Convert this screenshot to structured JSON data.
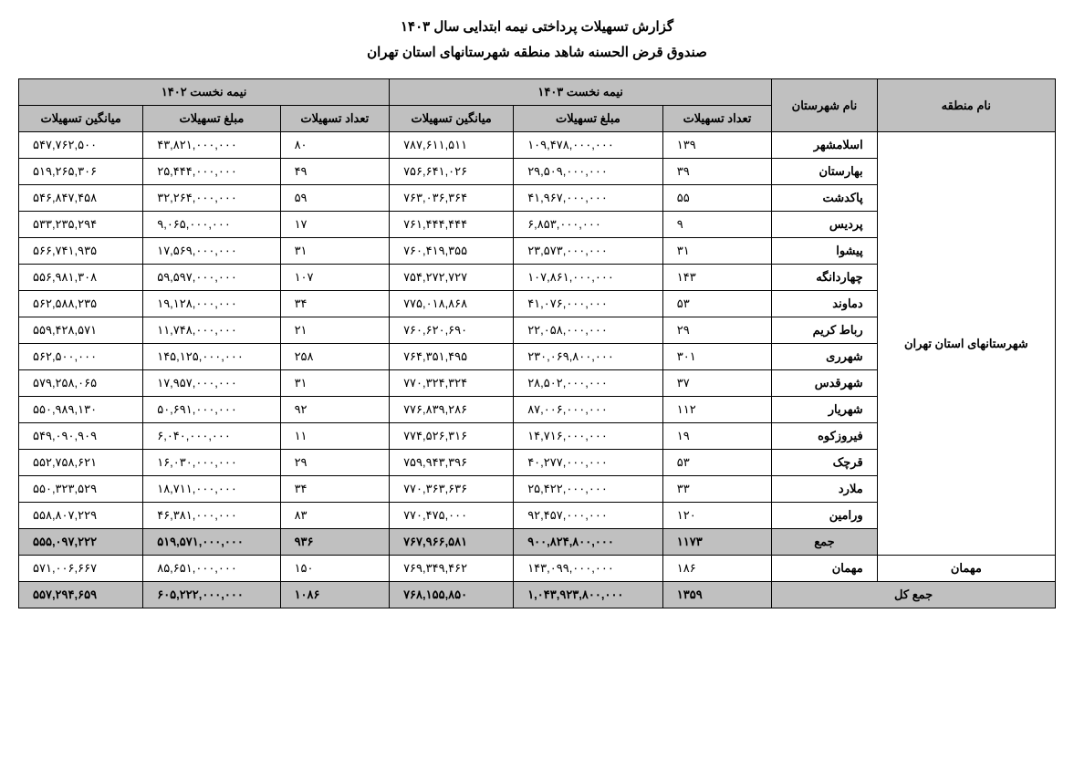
{
  "title1": "گزارش تسهیلات پرداختی نیمه ابتدایی سال ۱۴۰۳",
  "title2": "صندوق قرض الحسنه شاهد منطقه شهرستانهای استان تهران",
  "headers": {
    "region": "نام منطقه",
    "city": "نام شهرستان",
    "period1403": "نیمه نخست ۱۴۰۳",
    "period1402": "نیمه نخست ۱۴۰۲",
    "count": "تعداد تسهیلات",
    "amount": "مبلغ تسهیلات",
    "average": "میانگین تسهیلات"
  },
  "region_name": "شهرستانهای استان تهران",
  "rows": [
    {
      "city": "اسلامشهر",
      "c1403": "۱۳۹",
      "a1403": "۱۰۹,۴۷۸,۰۰۰,۰۰۰",
      "v1403": "۷۸۷,۶۱۱,۵۱۱",
      "c1402": "۸۰",
      "a1402": "۴۳,۸۲۱,۰۰۰,۰۰۰",
      "v1402": "۵۴۷,۷۶۲,۵۰۰"
    },
    {
      "city": "بهارستان",
      "c1403": "۳۹",
      "a1403": "۲۹,۵۰۹,۰۰۰,۰۰۰",
      "v1403": "۷۵۶,۶۴۱,۰۲۶",
      "c1402": "۴۹",
      "a1402": "۲۵,۴۴۴,۰۰۰,۰۰۰",
      "v1402": "۵۱۹,۲۶۵,۳۰۶"
    },
    {
      "city": "پاکدشت",
      "c1403": "۵۵",
      "a1403": "۴۱,۹۶۷,۰۰۰,۰۰۰",
      "v1403": "۷۶۳,۰۳۶,۳۶۴",
      "c1402": "۵۹",
      "a1402": "۳۲,۲۶۴,۰۰۰,۰۰۰",
      "v1402": "۵۴۶,۸۴۷,۴۵۸"
    },
    {
      "city": "پردیس",
      "c1403": "۹",
      "a1403": "۶,۸۵۳,۰۰۰,۰۰۰",
      "v1403": "۷۶۱,۴۴۴,۴۴۴",
      "c1402": "۱۷",
      "a1402": "۹,۰۶۵,۰۰۰,۰۰۰",
      "v1402": "۵۳۳,۲۳۵,۲۹۴"
    },
    {
      "city": "پیشوا",
      "c1403": "۳۱",
      "a1403": "۲۳,۵۷۳,۰۰۰,۰۰۰",
      "v1403": "۷۶۰,۴۱۹,۳۵۵",
      "c1402": "۳۱",
      "a1402": "۱۷,۵۶۹,۰۰۰,۰۰۰",
      "v1402": "۵۶۶,۷۴۱,۹۳۵"
    },
    {
      "city": "چهاردانگه",
      "c1403": "۱۴۳",
      "a1403": "۱۰۷,۸۶۱,۰۰۰,۰۰۰",
      "v1403": "۷۵۴,۲۷۲,۷۲۷",
      "c1402": "۱۰۷",
      "a1402": "۵۹,۵۹۷,۰۰۰,۰۰۰",
      "v1402": "۵۵۶,۹۸۱,۳۰۸"
    },
    {
      "city": "دماوند",
      "c1403": "۵۳",
      "a1403": "۴۱,۰۷۶,۰۰۰,۰۰۰",
      "v1403": "۷۷۵,۰۱۸,۸۶۸",
      "c1402": "۳۴",
      "a1402": "۱۹,۱۲۸,۰۰۰,۰۰۰",
      "v1402": "۵۶۲,۵۸۸,۲۳۵"
    },
    {
      "city": "رباط کریم",
      "c1403": "۲۹",
      "a1403": "۲۲,۰۵۸,۰۰۰,۰۰۰",
      "v1403": "۷۶۰,۶۲۰,۶۹۰",
      "c1402": "۲۱",
      "a1402": "۱۱,۷۴۸,۰۰۰,۰۰۰",
      "v1402": "۵۵۹,۴۲۸,۵۷۱"
    },
    {
      "city": "شهرری",
      "c1403": "۳۰۱",
      "a1403": "۲۳۰,۰۶۹,۸۰۰,۰۰۰",
      "v1403": "۷۶۴,۳۵۱,۴۹۵",
      "c1402": "۲۵۸",
      "a1402": "۱۴۵,۱۲۵,۰۰۰,۰۰۰",
      "v1402": "۵۶۲,۵۰۰,۰۰۰"
    },
    {
      "city": "شهرقدس",
      "c1403": "۳۷",
      "a1403": "۲۸,۵۰۲,۰۰۰,۰۰۰",
      "v1403": "۷۷۰,۳۲۴,۳۲۴",
      "c1402": "۳۱",
      "a1402": "۱۷,۹۵۷,۰۰۰,۰۰۰",
      "v1402": "۵۷۹,۲۵۸,۰۶۵"
    },
    {
      "city": "شهریار",
      "c1403": "۱۱۲",
      "a1403": "۸۷,۰۰۶,۰۰۰,۰۰۰",
      "v1403": "۷۷۶,۸۳۹,۲۸۶",
      "c1402": "۹۲",
      "a1402": "۵۰,۶۹۱,۰۰۰,۰۰۰",
      "v1402": "۵۵۰,۹۸۹,۱۳۰"
    },
    {
      "city": "فیروزکوه",
      "c1403": "۱۹",
      "a1403": "۱۴,۷۱۶,۰۰۰,۰۰۰",
      "v1403": "۷۷۴,۵۲۶,۳۱۶",
      "c1402": "۱۱",
      "a1402": "۶,۰۴۰,۰۰۰,۰۰۰",
      "v1402": "۵۴۹,۰۹۰,۹۰۹"
    },
    {
      "city": "قرچک",
      "c1403": "۵۳",
      "a1403": "۴۰,۲۷۷,۰۰۰,۰۰۰",
      "v1403": "۷۵۹,۹۴۳,۳۹۶",
      "c1402": "۲۹",
      "a1402": "۱۶,۰۳۰,۰۰۰,۰۰۰",
      "v1402": "۵۵۲,۷۵۸,۶۲۱"
    },
    {
      "city": "ملارد",
      "c1403": "۳۳",
      "a1403": "۲۵,۴۲۲,۰۰۰,۰۰۰",
      "v1403": "۷۷۰,۳۶۳,۶۳۶",
      "c1402": "۳۴",
      "a1402": "۱۸,۷۱۱,۰۰۰,۰۰۰",
      "v1402": "۵۵۰,۳۲۳,۵۲۹"
    },
    {
      "city": "ورامین",
      "c1403": "۱۲۰",
      "a1403": "۹۲,۴۵۷,۰۰۰,۰۰۰",
      "v1403": "۷۷۰,۴۷۵,۰۰۰",
      "c1402": "۸۳",
      "a1402": "۴۶,۳۸۱,۰۰۰,۰۰۰",
      "v1402": "۵۵۸,۸۰۷,۲۲۹"
    }
  ],
  "sum_row": {
    "label": "جمع",
    "c1403": "۱۱۷۳",
    "a1403": "۹۰۰,۸۲۴,۸۰۰,۰۰۰",
    "v1403": "۷۶۷,۹۶۶,۵۸۱",
    "c1402": "۹۳۶",
    "a1402": "۵۱۹,۵۷۱,۰۰۰,۰۰۰",
    "v1402": "۵۵۵,۰۹۷,۲۲۲"
  },
  "guest_row": {
    "region": "مهمان",
    "city": "مهمان",
    "c1403": "۱۸۶",
    "a1403": "۱۴۳,۰۹۹,۰۰۰,۰۰۰",
    "v1403": "۷۶۹,۳۴۹,۴۶۲",
    "c1402": "۱۵۰",
    "a1402": "۸۵,۶۵۱,۰۰۰,۰۰۰",
    "v1402": "۵۷۱,۰۰۶,۶۶۷"
  },
  "total_row": {
    "label": "جمع کل",
    "c1403": "۱۳۵۹",
    "a1403": "۱,۰۴۳,۹۲۳,۸۰۰,۰۰۰",
    "v1403": "۷۶۸,۱۵۵,۸۵۰",
    "c1402": "۱۰۸۶",
    "a1402": "۶۰۵,۲۲۲,۰۰۰,۰۰۰",
    "v1402": "۵۵۷,۲۹۴,۶۵۹"
  }
}
